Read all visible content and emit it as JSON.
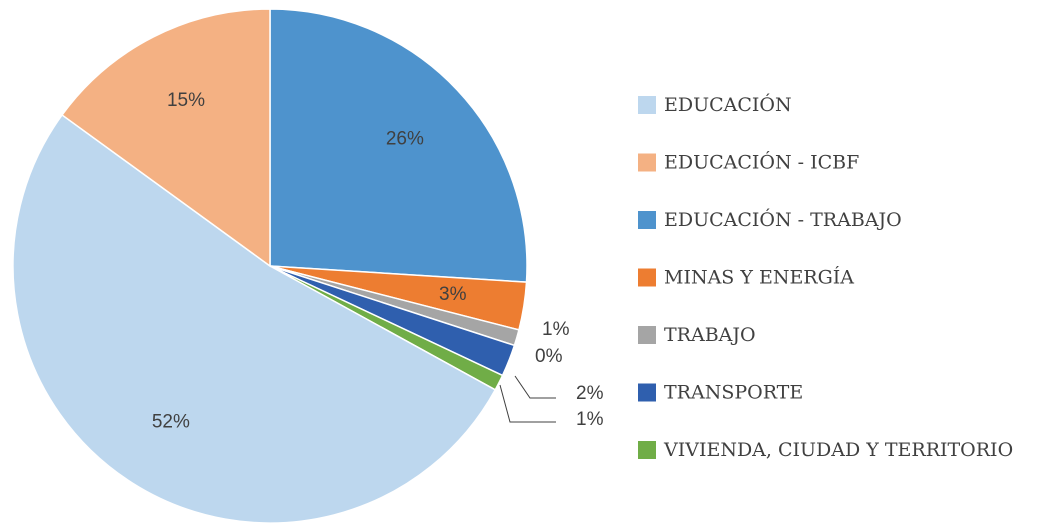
{
  "chart_data": {
    "type": "pie",
    "categories": [
      "EDUCACIÓN",
      "EDUCACIÓN - ICBF",
      "EDUCACIÓN - TRABAJO",
      "MINAS Y ENERGÍA",
      "TRABAJO",
      null,
      "TRANSPORTE",
      "VIVIENDA, CIUDAD Y TERRITORIO"
    ],
    "values": [
      52,
      15,
      26,
      3,
      1,
      0,
      2,
      1
    ],
    "value_labels": [
      "52%",
      "15%",
      "26%",
      "3%",
      "1%",
      "0%",
      "2%",
      "1%"
    ],
    "colors": [
      "#bdd7ee",
      "#f4b183",
      "#4e93cd",
      "#ed7d31",
      "#a5a5a5",
      "#ffc000",
      "#2f5fae",
      "#70ad47"
    ],
    "legend": "right"
  }
}
